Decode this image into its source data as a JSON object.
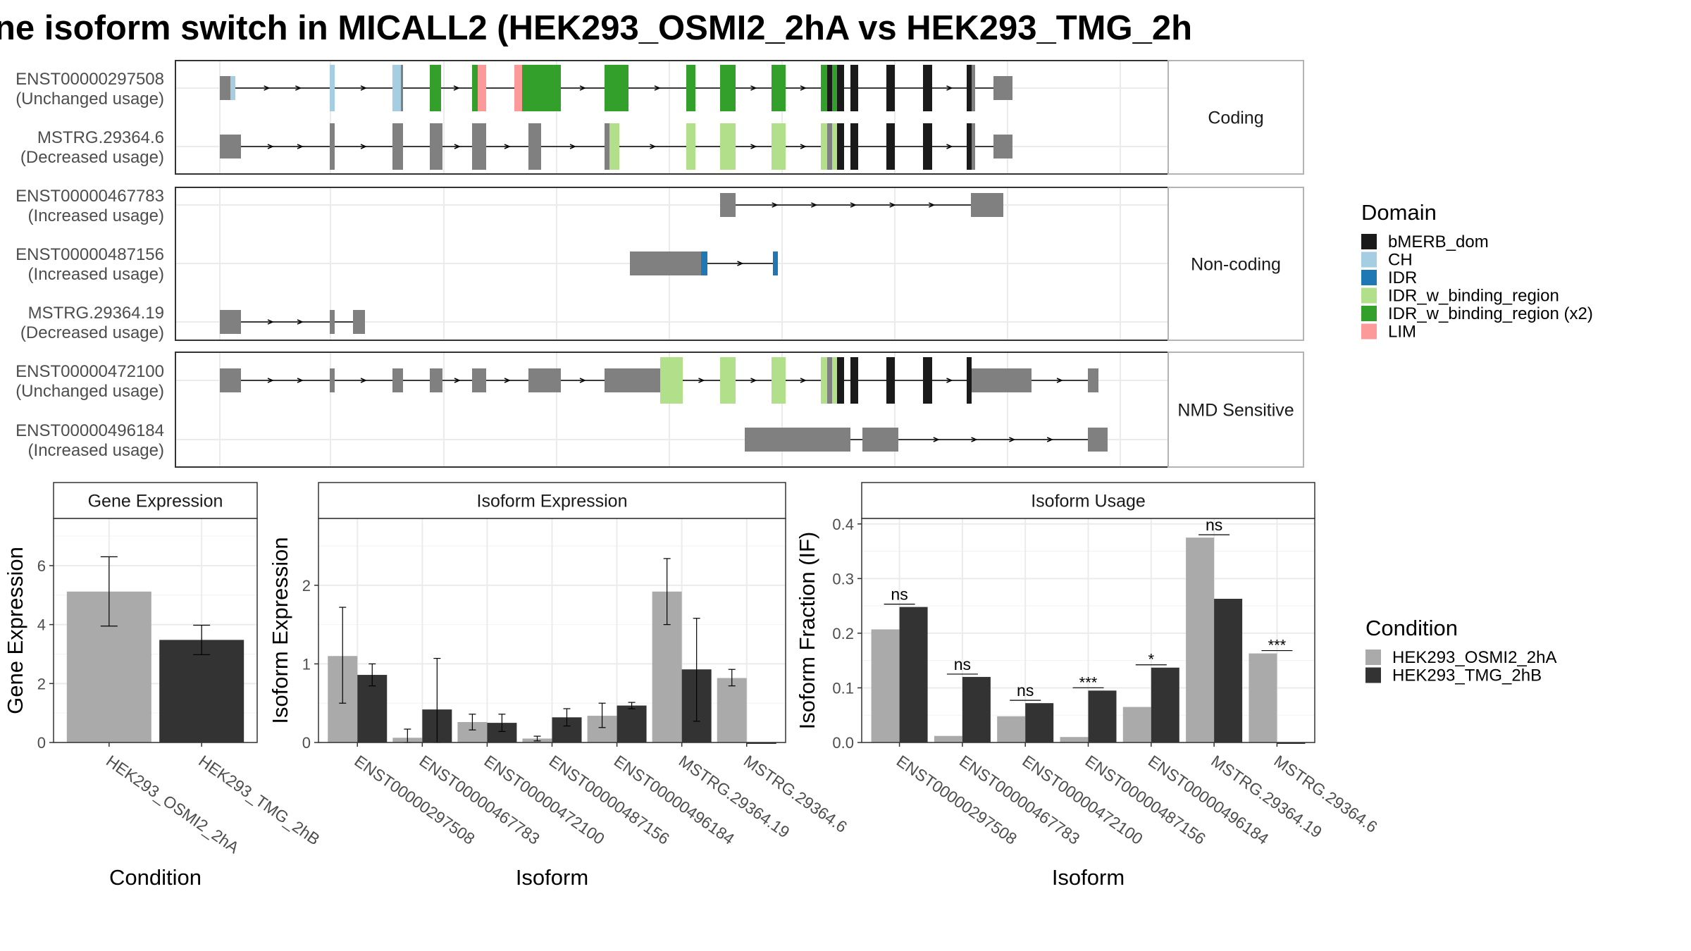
{
  "title": "ne isoform switch in MICALL2 (HEK293_OSMI2_2hA vs HEK293_TMG_2h",
  "colors": {
    "bMERB_dom": "#1a1a1a",
    "CH": "#a6cee3",
    "IDR": "#1f78b4",
    "IDR_w_binding_region": "#b2df8a",
    "IDR_w_binding_region (x2)": "#33a02c",
    "LIM": "#fb9a99",
    "exon": "#808080",
    "cond_a": "#aaaaaa",
    "cond_b": "#333333"
  },
  "legends": {
    "domain": {
      "title": "Domain",
      "items": [
        "bMERB_dom",
        "CH",
        "IDR",
        "IDR_w_binding_region",
        "IDR_w_binding_region (x2)",
        "LIM"
      ]
    },
    "condition": {
      "title": "Condition",
      "items": [
        "HEK293_OSMI2_2hA",
        "HEK293_TMG_2hB"
      ]
    }
  },
  "chart_data": [
    {
      "type": "gene-structure",
      "panels": [
        {
          "label": "Coding",
          "isoforms": [
            {
              "id": "ENST00000297508",
              "usage": "(Unchanged usage)",
              "exons": [
                [
                  0,
                  15,
                  "n"
                ],
                [
                  15,
                  22,
                  "CH"
                ],
                [
                  156,
                  163,
                  "CH"
                ],
                [
                  245,
                  257,
                  "CH"
                ],
                [
                  257,
                  260,
                  "n"
                ],
                [
                  298,
                  314,
                  "x2"
                ],
                [
                  358,
                  366,
                  "x2"
                ],
                [
                  366,
                  378,
                  "LIM"
                ],
                [
                  418,
                  429,
                  "LIM"
                ],
                [
                  429,
                  484,
                  "x2"
                ],
                [
                  546,
                  580,
                  "x2"
                ],
                [
                  662,
                  675,
                  "x2"
                ],
                [
                  710,
                  732,
                  "x2"
                ],
                [
                  783,
                  803,
                  "x2"
                ],
                [
                  853,
                  862,
                  "x2"
                ],
                [
                  862,
                  869,
                  "b"
                ],
                [
                  869,
                  876,
                  "x2"
                ],
                [
                  876,
                  886,
                  "b"
                ],
                [
                  895,
                  906,
                  "b"
                ],
                [
                  946,
                  958,
                  "b"
                ],
                [
                  998,
                  1011,
                  "b"
                ],
                [
                  1060,
                  1067,
                  "b"
                ],
                [
                  1067,
                  1072,
                  "n"
                ],
                [
                  1098,
                  1125,
                  "n"
                ]
              ],
              "thick": [
                [
                  17,
                  1105
                ]
              ]
            },
            {
              "id": "MSTRG.29364.6",
              "usage": "(Decreased usage)",
              "exons": [
                [
                  0,
                  30,
                  "n"
                ],
                [
                  156,
                  163,
                  "n"
                ],
                [
                  245,
                  260,
                  "n"
                ],
                [
                  298,
                  316,
                  "n"
                ],
                [
                  358,
                  378,
                  "n"
                ],
                [
                  438,
                  456,
                  "n"
                ],
                [
                  546,
                  553,
                  "n"
                ],
                [
                  553,
                  567,
                  "l"
                ],
                [
                  662,
                  675,
                  "l"
                ],
                [
                  710,
                  732,
                  "l"
                ],
                [
                  783,
                  803,
                  "l"
                ],
                [
                  853,
                  862,
                  "l"
                ],
                [
                  862,
                  869,
                  "n"
                ],
                [
                  869,
                  876,
                  "l"
                ],
                [
                  876,
                  886,
                  "b"
                ],
                [
                  895,
                  906,
                  "b"
                ],
                [
                  946,
                  958,
                  "b"
                ],
                [
                  998,
                  1011,
                  "b"
                ],
                [
                  1060,
                  1067,
                  "b"
                ],
                [
                  1067,
                  1072,
                  "n"
                ],
                [
                  1098,
                  1125,
                  "n"
                ]
              ],
              "thick": [
                [
                  17,
                  1105
                ]
              ]
            }
          ]
        },
        {
          "label": "Non-coding",
          "isoforms": [
            {
              "id": "ENST00000467783",
              "usage": "(Increased usage)",
              "exons": [
                [
                  710,
                  732,
                  "n"
                ],
                [
                  1066,
                  1112,
                  "n"
                ]
              ],
              "thick": []
            },
            {
              "id": "ENST00000487156",
              "usage": "(Increased usage)",
              "exons": [
                [
                  582,
                  683,
                  "n"
                ],
                [
                  683,
                  692,
                  "i"
                ],
                [
                  785,
                  792,
                  "i"
                ]
              ],
              "thick": [
                [
                  686,
                  692
                ]
              ]
            },
            {
              "id": "MSTRG.29364.19",
              "usage": "(Decreased usage)",
              "exons": [
                [
                  0,
                  30,
                  "n"
                ],
                [
                  156,
                  163,
                  "n"
                ],
                [
                  189,
                  206,
                  "n"
                ]
              ],
              "thick": []
            }
          ]
        },
        {
          "label": "NMD Sensitive",
          "isoforms": [
            {
              "id": "ENST00000472100",
              "usage": "(Unchanged usage)",
              "exons": [
                [
                  0,
                  30,
                  "n"
                ],
                [
                  156,
                  163,
                  "n"
                ],
                [
                  245,
                  260,
                  "n"
                ],
                [
                  298,
                  316,
                  "n"
                ],
                [
                  358,
                  378,
                  "n"
                ],
                [
                  438,
                  484,
                  "n"
                ],
                [
                  546,
                  625,
                  "n"
                ],
                [
                  625,
                  657,
                  "l"
                ],
                [
                  710,
                  732,
                  "l"
                ],
                [
                  783,
                  803,
                  "l"
                ],
                [
                  853,
                  862,
                  "l"
                ],
                [
                  862,
                  869,
                  "n"
                ],
                [
                  869,
                  876,
                  "l"
                ],
                [
                  876,
                  886,
                  "b"
                ],
                [
                  895,
                  906,
                  "b"
                ],
                [
                  946,
                  958,
                  "b"
                ],
                [
                  998,
                  1011,
                  "b"
                ],
                [
                  1060,
                  1067,
                  "b"
                ],
                [
                  1067,
                  1152,
                  "n"
                ],
                [
                  1232,
                  1247,
                  "n"
                ]
              ],
              "thick": [
                [
                  617,
                  1080
                ]
              ]
            },
            {
              "id": "ENST00000496184",
              "usage": "(Increased usage)",
              "exons": [
                [
                  745,
                  829,
                  "n"
                ],
                [
                  829,
                  895,
                  "n"
                ],
                [
                  912,
                  963,
                  "n"
                ],
                [
                  1232,
                  1260,
                  "n"
                ]
              ],
              "thick": [
                [
                  783,
                  829
                ]
              ]
            }
          ]
        }
      ]
    },
    {
      "type": "bar",
      "title": "Gene Expression",
      "xlabel": "Condition",
      "ylabel": "Gene Expression",
      "ylim": [
        0,
        7.6
      ],
      "yticks": [
        0,
        2,
        4,
        6
      ],
      "categories": [
        "HEK293_OSMI2_2hA",
        "HEK293_TMG_2hB"
      ],
      "values": [
        5.12,
        3.48
      ],
      "errors": [
        [
          3.95,
          6.3
        ],
        [
          2.98,
          3.98
        ]
      ]
    },
    {
      "type": "bar",
      "title": "Isoform Expression",
      "xlabel": "Isoform",
      "ylabel": "Isoform Expression",
      "ylim": [
        0,
        2.85
      ],
      "yticks": [
        0,
        1,
        2
      ],
      "categories": [
        "ENST00000297508",
        "ENST00000467783",
        "ENST00000472100",
        "ENST00000487156",
        "ENST00000496184",
        "MSTRG.29364.19",
        "MSTRG.29364.6"
      ],
      "series": [
        {
          "name": "HEK293_OSMI2_2hA",
          "values": [
            1.1,
            0.06,
            0.26,
            0.05,
            0.34,
            1.92,
            0.82
          ],
          "errors": [
            [
              0.5,
              1.72
            ],
            [
              0,
              0.17
            ],
            [
              0.16,
              0.36
            ],
            [
              0.02,
              0.08
            ],
            [
              0.19,
              0.5
            ],
            [
              1.5,
              2.34
            ],
            [
              0.72,
              0.93
            ]
          ]
        },
        {
          "name": "HEK293_TMG_2hB",
          "values": [
            0.86,
            0.42,
            0.25,
            0.32,
            0.47,
            0.93,
            0.0
          ],
          "errors": [
            [
              0.72,
              1.0
            ],
            [
              0,
              1.07
            ],
            [
              0.14,
              0.36
            ],
            [
              0.21,
              0.43
            ],
            [
              0.43,
              0.51
            ],
            [
              0.27,
              1.58
            ],
            [
              0,
              0
            ]
          ]
        }
      ]
    },
    {
      "type": "bar",
      "title": "Isoform Usage",
      "xlabel": "Isoform",
      "ylabel": "Isoform Fraction (IF)",
      "ylim": [
        0,
        0.41
      ],
      "yticks": [
        0.0,
        0.1,
        0.2,
        0.3,
        0.4
      ],
      "categories": [
        "ENST00000297508",
        "ENST00000467783",
        "ENST00000472100",
        "ENST00000487156",
        "ENST00000496184",
        "MSTRG.29364.19",
        "MSTRG.29364.6"
      ],
      "series": [
        {
          "name": "HEK293_OSMI2_2hA",
          "values": [
            0.207,
            0.012,
            0.048,
            0.01,
            0.065,
            0.375,
            0.163
          ]
        },
        {
          "name": "HEK293_TMG_2hB",
          "values": [
            0.248,
            0.12,
            0.072,
            0.095,
            0.137,
            0.263,
            0.0
          ]
        }
      ],
      "annotations": [
        "ns",
        "ns",
        "ns",
        "***",
        "*",
        "ns",
        "***"
      ]
    }
  ]
}
